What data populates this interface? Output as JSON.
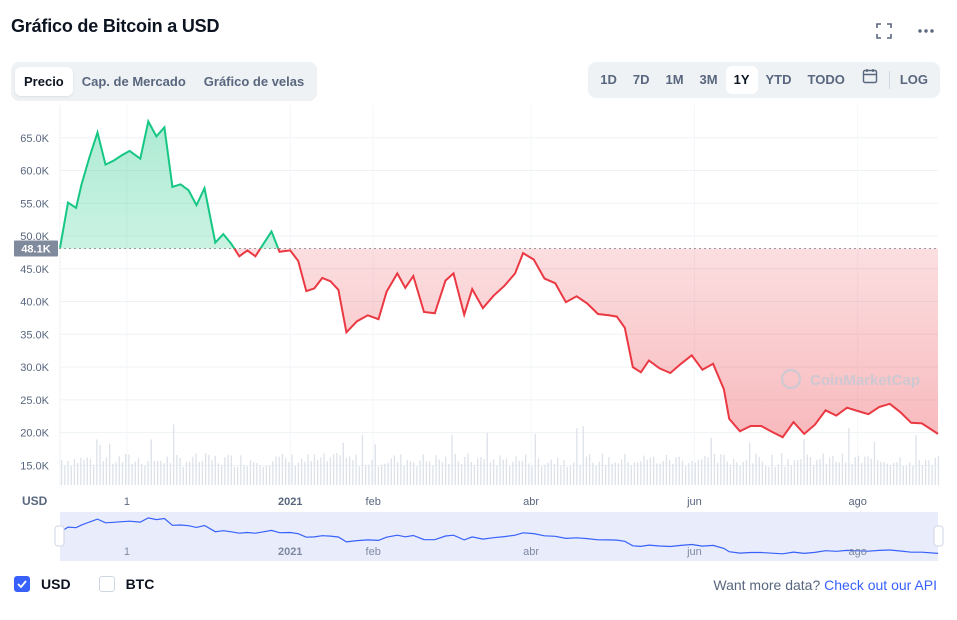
{
  "header": {
    "title": "Gráfico de Bitcoin a USD"
  },
  "tabs": [
    {
      "label": "Precio",
      "active": true
    },
    {
      "label": "Cap. de Mercado",
      "active": false
    },
    {
      "label": "Gráfico de velas",
      "active": false
    }
  ],
  "ranges": [
    "1D",
    "7D",
    "1M",
    "3M",
    "1Y",
    "YTD",
    "TODO"
  ],
  "active_range": "1Y",
  "log_label": "LOG",
  "legend": {
    "usd_label": "USD",
    "btc_label": "BTC",
    "usd_checked": true,
    "btc_checked": false
  },
  "footer": {
    "text": "Want more data?",
    "link": "Check out our API"
  },
  "watermark": "CoinMarketCap",
  "colors": {
    "up": "#16c784",
    "down": "#ea3943",
    "accent": "#3861fb",
    "text_muted": "#58667e"
  },
  "chart_data": {
    "type": "line",
    "title": "Gráfico de Bitcoin a USD",
    "ylabel": "",
    "xlabel": "USD",
    "ylim": [
      12000,
      70000
    ],
    "y_ticks": [
      "15.0K",
      "20.0K",
      "25.0K",
      "30.0K",
      "35.0K",
      "40.0K",
      "45.0K",
      "50.0K",
      "55.0K",
      "60.0K",
      "65.0K"
    ],
    "y_tick_values": [
      15000,
      20000,
      25000,
      30000,
      35000,
      40000,
      45000,
      50000,
      55000,
      60000,
      65000
    ],
    "x_ticks": [
      "1",
      "2021",
      "feb",
      "abr",
      "jun",
      "ago"
    ],
    "x_tick_dates": [
      "2021-11-01",
      "2022-01-01",
      "2022-02-01",
      "2022-04-01",
      "2022-06-01",
      "2022-08-01"
    ],
    "x_range": [
      "2021-10-07",
      "2022-08-31"
    ],
    "reference_value": 48100,
    "reference_label": "48.1K",
    "series": [
      {
        "x": [
          "2021-10-07",
          "2021-10-10",
          "2021-10-13",
          "2021-10-15",
          "2021-10-18",
          "2021-10-21",
          "2021-10-24",
          "2021-10-27",
          "2021-10-30",
          "2021-11-02",
          "2021-11-06",
          "2021-11-09",
          "2021-11-12",
          "2021-11-15",
          "2021-11-18",
          "2021-11-21",
          "2021-11-24",
          "2021-11-27",
          "2021-11-30",
          "2021-12-04",
          "2021-12-07",
          "2021-12-10",
          "2021-12-13",
          "2021-12-16",
          "2021-12-19",
          "2021-12-22",
          "2021-12-25",
          "2021-12-28",
          "2022-01-01",
          "2022-01-04",
          "2022-01-07",
          "2022-01-10",
          "2022-01-13",
          "2022-01-16",
          "2022-01-19",
          "2022-01-22",
          "2022-01-26",
          "2022-01-30",
          "2022-02-03",
          "2022-02-06",
          "2022-02-10",
          "2022-02-13",
          "2022-02-16",
          "2022-02-20",
          "2022-02-24",
          "2022-02-28",
          "2022-03-03",
          "2022-03-07",
          "2022-03-10",
          "2022-03-14",
          "2022-03-18",
          "2022-03-22",
          "2022-03-26",
          "2022-03-29",
          "2022-04-02",
          "2022-04-06",
          "2022-04-10",
          "2022-04-14",
          "2022-04-18",
          "2022-04-22",
          "2022-04-26",
          "2022-04-30",
          "2022-05-03",
          "2022-05-06",
          "2022-05-09",
          "2022-05-12",
          "2022-05-15",
          "2022-05-19",
          "2022-05-23",
          "2022-05-27",
          "2022-05-31",
          "2022-06-04",
          "2022-06-08",
          "2022-06-12",
          "2022-06-14",
          "2022-06-18",
          "2022-06-22",
          "2022-06-26",
          "2022-06-30",
          "2022-07-04",
          "2022-07-08",
          "2022-07-12",
          "2022-07-16",
          "2022-07-20",
          "2022-07-24",
          "2022-07-28",
          "2022-08-01",
          "2022-08-05",
          "2022-08-09",
          "2022-08-13",
          "2022-08-17",
          "2022-08-21",
          "2022-08-25",
          "2022-08-31"
        ],
        "values": [
          48200,
          55100,
          54300,
          57800,
          62000,
          65800,
          60900,
          61500,
          62300,
          63000,
          61800,
          67500,
          65200,
          66600,
          57500,
          57900,
          57000,
          54700,
          57300,
          49000,
          50300,
          48800,
          46900,
          47800,
          46900,
          48800,
          50700,
          47600,
          47800,
          46200,
          41600,
          42000,
          43600,
          43100,
          41800,
          35300,
          37000,
          37900,
          37300,
          41500,
          44300,
          42100,
          43900,
          38400,
          38200,
          43200,
          44300,
          38000,
          41900,
          39000,
          40900,
          42400,
          44300,
          47400,
          46400,
          43500,
          42800,
          39900,
          40800,
          39700,
          38100,
          37900,
          37700,
          36000,
          30000,
          29200,
          31000,
          29800,
          29100,
          30500,
          31800,
          29600,
          30500,
          26600,
          22100,
          20200,
          21000,
          21000,
          20100,
          19300,
          21600,
          19800,
          21200,
          23400,
          22600,
          23800,
          23300,
          22800,
          23900,
          24400,
          23100,
          21500,
          21400,
          19800
        ]
      }
    ]
  }
}
